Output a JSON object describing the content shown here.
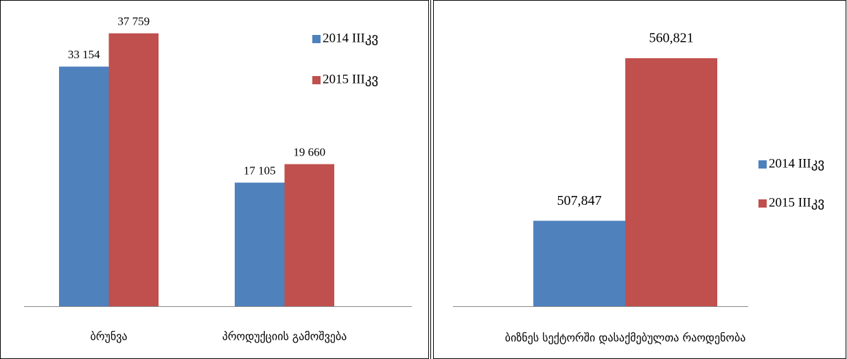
{
  "chart_data": [
    {
      "type": "bar",
      "categories": [
        "ბრუნვა",
        "პროდუქციის გამოშვება"
      ],
      "series": [
        {
          "name": "2014 IIIკვ",
          "color": "#4f81bd",
          "values": [
            33154,
            17105
          ],
          "value_labels": [
            "33 154",
            "17 105"
          ]
        },
        {
          "name": "2015 IIIკვ",
          "color": "#c0504d",
          "values": [
            37759,
            19660
          ],
          "value_labels": [
            "37 759",
            "19 660"
          ]
        }
      ],
      "ylim": [
        0,
        40000
      ],
      "legend": "right"
    },
    {
      "type": "bar",
      "categories": [
        "ბიზნეს სექტორში დასაქმებულთა რაოდენობა"
      ],
      "series": [
        {
          "name": "2014 IIIკვ",
          "color": "#4f81bd",
          "values": [
            507847
          ],
          "value_labels": [
            "507,847"
          ]
        },
        {
          "name": "2015 IIIკვ",
          "color": "#c0504d",
          "values": [
            560821
          ],
          "value_labels": [
            "560,821"
          ]
        }
      ],
      "ylim": [
        480000,
        580000
      ],
      "legend": "right"
    }
  ]
}
